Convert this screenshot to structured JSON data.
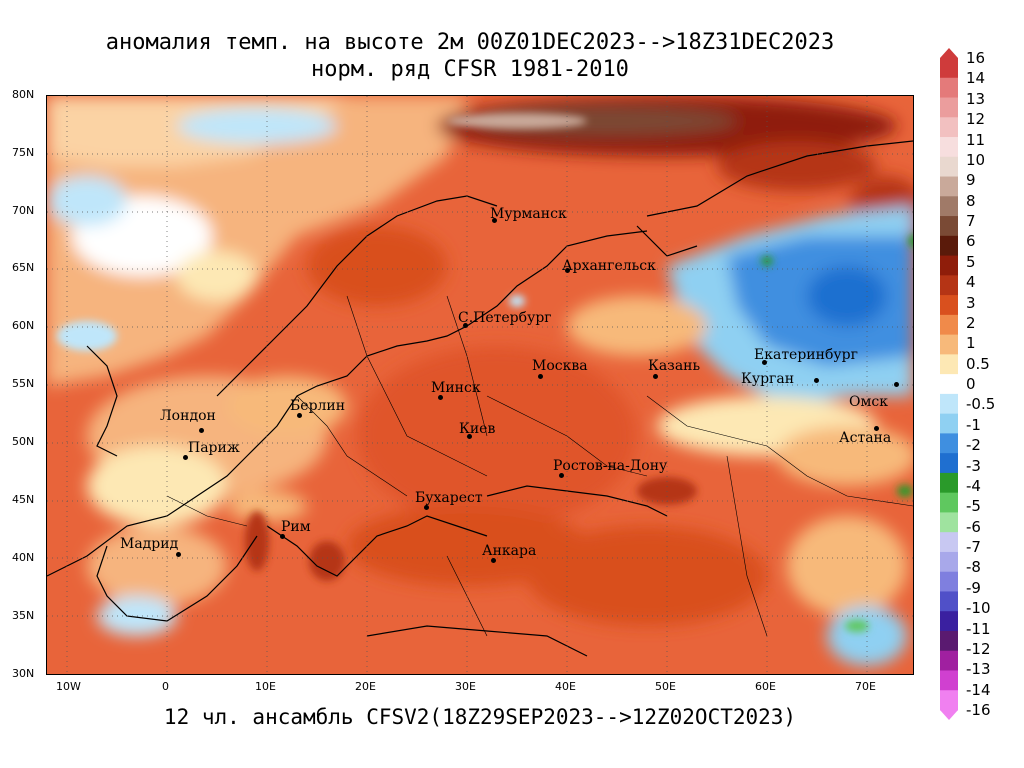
{
  "title": {
    "line1": "аномалия темп. на высоте 2м 00Z01DEC2023-->18Z31DEC2023",
    "line2": "норм. ряд CFSR 1981-2010"
  },
  "footer": "12 чл. ансамбль CFSV2(18Z29SEP2023-->12Z02OCT2023)",
  "map": {
    "lat_labels": [
      "80N",
      "75N",
      "70N",
      "65N",
      "60N",
      "55N",
      "50N",
      "45N",
      "40N",
      "35N",
      "30N"
    ],
    "lon_labels": [
      "10W",
      "0",
      "10E",
      "20E",
      "30E",
      "40E",
      "50E",
      "60E",
      "70E"
    ],
    "cities": [
      {
        "name": "Мурманск"
      },
      {
        "name": "Архангельск"
      },
      {
        "name": "С.Петербург"
      },
      {
        "name": "Москва"
      },
      {
        "name": "Казань"
      },
      {
        "name": "Екатеринбург"
      },
      {
        "name": "Курган"
      },
      {
        "name": "Омск"
      },
      {
        "name": "Астана"
      },
      {
        "name": "Минск"
      },
      {
        "name": "Берлин"
      },
      {
        "name": "Лондон"
      },
      {
        "name": "Париж"
      },
      {
        "name": "Киев"
      },
      {
        "name": "Ростов-на-Дону"
      },
      {
        "name": "Бухарест"
      },
      {
        "name": "Рим"
      },
      {
        "name": "Мадрид"
      },
      {
        "name": "Анкара"
      }
    ]
  },
  "colorbar": {
    "labels": [
      "16",
      "14",
      "13",
      "12",
      "11",
      "10",
      "9",
      "8",
      "7",
      "6",
      "5",
      "4",
      "3",
      "2",
      "1",
      "0.5",
      "0",
      "-0.5",
      "-1",
      "-2",
      "-3",
      "-4",
      "-5",
      "-6",
      "-7",
      "-8",
      "-9",
      "-10",
      "-11",
      "-12",
      "-13",
      "-14",
      "-16"
    ],
    "colors": [
      "#cf3b3b",
      "#e47a7a",
      "#eb9d9d",
      "#f2c0c0",
      "#f7dede",
      "#e9d8cf",
      "#c9a99a",
      "#a07a68",
      "#7a4a35",
      "#5a1a0a",
      "#8f1d0a",
      "#b53415",
      "#d9501e",
      "#f08a4a",
      "#f7b97a",
      "#fde8b4",
      "#ffffff",
      "#bfe6fa",
      "#8fd0f2",
      "#3f8fe0",
      "#1f6fd0",
      "#2a9a2a",
      "#5fc85f",
      "#9fe39f",
      "#c8c8f2",
      "#a8a8ea",
      "#7f7fdf",
      "#5050c8",
      "#3a20a0",
      "#5a1a70",
      "#a020a0",
      "#d040d0",
      "#f080f0"
    ]
  }
}
